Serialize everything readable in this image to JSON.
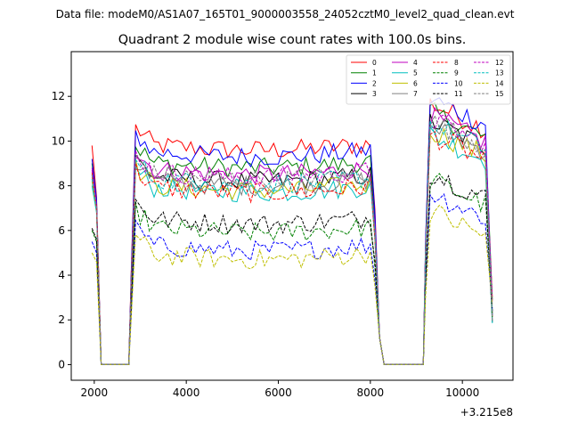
{
  "header": {
    "suptitle": "Data file: modeM0/AS1A07_165T01_9000003558_24052cztM0_level2_quad_clean.evt"
  },
  "chart_data": {
    "type": "line",
    "title": "Quadrant 2 module wise count rates with 100.0s bins.",
    "xlabel": "",
    "ylabel": "",
    "x_offset_label": "+3.215e8",
    "xlim": [
      1500,
      11100
    ],
    "ylim": [
      -0.7,
      14.0
    ],
    "x_ticks": [
      2000,
      4000,
      6000,
      8000,
      10000
    ],
    "x_tick_labels": [
      "2000",
      "4000",
      "6000",
      "8000",
      "10000"
    ],
    "y_ticks": [
      0,
      2,
      4,
      6,
      8,
      10,
      12
    ],
    "y_tick_labels": [
      "0",
      "2",
      "4",
      "6",
      "8",
      "10",
      "12"
    ],
    "grid": false,
    "legend_placement": "top-right",
    "segments": [
      {
        "start": 1950,
        "end": 2150
      },
      {
        "start": 2800,
        "end": 8150
      },
      {
        "start": 9200,
        "end": 10650
      }
    ],
    "gap_level": 0,
    "series": [
      {
        "name": "0",
        "color": "#ff0000",
        "dash": "solid",
        "seg1": [
          9.8,
          7.5,
          0
        ],
        "seg2": 9.9,
        "seg3": 10.8
      },
      {
        "name": "1",
        "color": "#008000",
        "dash": "solid",
        "seg1": [
          9.0,
          7.2,
          0
        ],
        "seg2": 9.1,
        "seg3": 10.4
      },
      {
        "name": "2",
        "color": "#0000ff",
        "dash": "solid",
        "seg1": [
          9.2,
          7.4,
          0
        ],
        "seg2": 9.6,
        "seg3": 11.0
      },
      {
        "name": "3",
        "color": "#000000",
        "dash": "solid",
        "seg1": [
          8.5,
          7.0,
          0
        ],
        "seg2": 8.5,
        "seg3": 10.0
      },
      {
        "name": "4",
        "color": "#bf00bf",
        "dash": "solid",
        "seg1": [
          8.8,
          7.1,
          0
        ],
        "seg2": 8.8,
        "seg3": 10.2
      },
      {
        "name": "5",
        "color": "#00bfbf",
        "dash": "solid",
        "seg1": [
          8.0,
          6.8,
          0
        ],
        "seg2": 8.0,
        "seg3": 9.4
      },
      {
        "name": "6",
        "color": "#bfbf00",
        "dash": "solid",
        "seg1": [
          8.2,
          6.9,
          0
        ],
        "seg2": 8.1,
        "seg3": 9.6
      },
      {
        "name": "7",
        "color": "#808080",
        "dash": "solid",
        "seg1": [
          8.4,
          7.0,
          0
        ],
        "seg2": 8.3,
        "seg3": 9.8
      },
      {
        "name": "8",
        "color": "#ff0000",
        "dash": "dashed",
        "seg1": [
          8.6,
          7.0,
          0
        ],
        "seg2": 8.0,
        "seg3": 9.4
      },
      {
        "name": "9",
        "color": "#008000",
        "dash": "dashed",
        "seg1": [
          6.0,
          5.5,
          0
        ],
        "seg2": 6.2,
        "seg3": 7.4
      },
      {
        "name": "10",
        "color": "#0000ff",
        "dash": "dashed",
        "seg1": [
          5.5,
          5.0,
          0
        ],
        "seg2": 5.4,
        "seg3": 6.8
      },
      {
        "name": "11",
        "color": "#000000",
        "dash": "dashed",
        "seg1": [
          6.1,
          5.6,
          0
        ],
        "seg2": 6.6,
        "seg3": 7.7
      },
      {
        "name": "12",
        "color": "#bf00bf",
        "dash": "dashed",
        "seg1": [
          8.7,
          7.1,
          0
        ],
        "seg2": 8.7,
        "seg3": 10.1
      },
      {
        "name": "13",
        "color": "#00bfbf",
        "dash": "dashed",
        "seg1": [
          8.3,
          6.9,
          0
        ],
        "seg2": 8.4,
        "seg3": 9.9
      },
      {
        "name": "14",
        "color": "#bfbf00",
        "dash": "dashed",
        "seg1": [
          5.0,
          4.6,
          0
        ],
        "seg2": 5.0,
        "seg3": 6.0
      },
      {
        "name": "15",
        "color": "#808080",
        "dash": "dashed",
        "seg1": [
          8.5,
          7.0,
          0
        ],
        "seg2": 8.6,
        "seg3": 10.0
      }
    ]
  }
}
